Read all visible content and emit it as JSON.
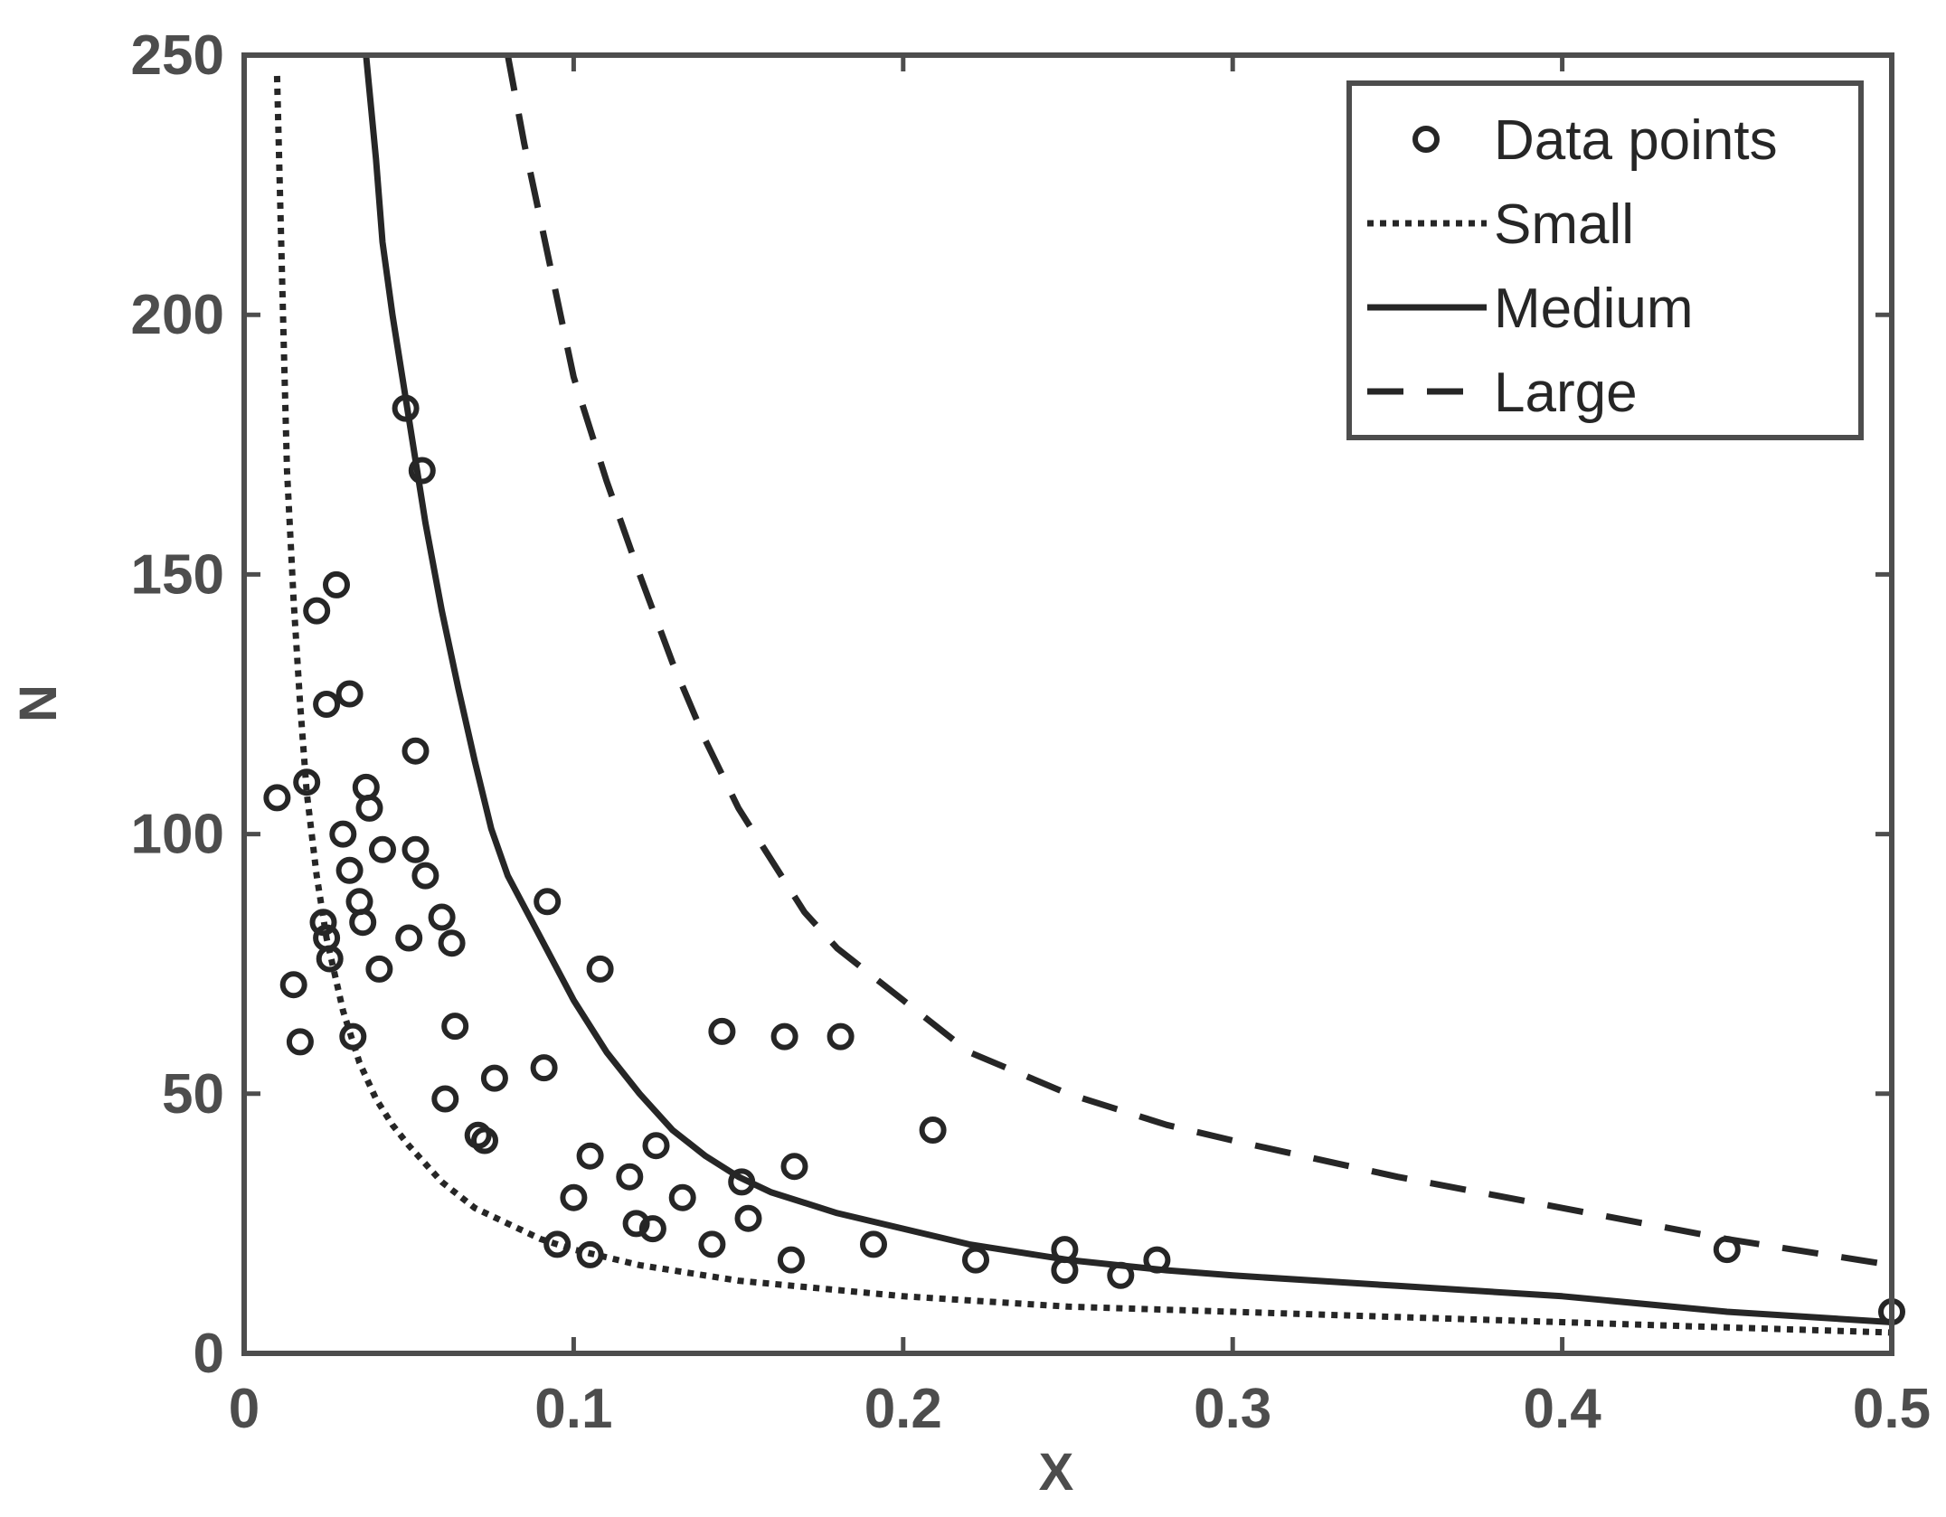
{
  "chart_data": {
    "type": "scatter",
    "xlabel": "X",
    "ylabel": "N",
    "xlim": [
      0,
      0.5
    ],
    "ylim": [
      0,
      250
    ],
    "x_ticks": [
      0,
      0.1,
      0.2,
      0.3,
      0.4,
      0.5
    ],
    "x_tick_labels": [
      "0",
      "0.1",
      "0.2",
      "0.3",
      "0.4",
      "0.5"
    ],
    "y_ticks": [
      0,
      50,
      100,
      150,
      200,
      250
    ],
    "y_tick_labels": [
      "0",
      "50",
      "100",
      "150",
      "200",
      "250"
    ],
    "grid": false,
    "legend_position": "top-right",
    "colors": {
      "axis": "#4d4d4d",
      "series": "#262626",
      "background": "#ffffff"
    },
    "series": [
      {
        "name": "Data points",
        "kind": "markers",
        "marker": "circle",
        "points": [
          [
            0.01,
            107
          ],
          [
            0.015,
            71
          ],
          [
            0.017,
            60
          ],
          [
            0.019,
            110
          ],
          [
            0.022,
            143
          ],
          [
            0.024,
            83
          ],
          [
            0.025,
            125
          ],
          [
            0.025,
            80
          ],
          [
            0.026,
            76
          ],
          [
            0.028,
            148
          ],
          [
            0.03,
            100
          ],
          [
            0.032,
            127
          ],
          [
            0.032,
            93
          ],
          [
            0.033,
            61
          ],
          [
            0.035,
            87
          ],
          [
            0.036,
            83
          ],
          [
            0.037,
            109
          ],
          [
            0.038,
            105
          ],
          [
            0.041,
            74
          ],
          [
            0.042,
            97
          ],
          [
            0.049,
            182
          ],
          [
            0.05,
            80
          ],
          [
            0.052,
            116
          ],
          [
            0.052,
            97
          ],
          [
            0.054,
            170
          ],
          [
            0.055,
            92
          ],
          [
            0.06,
            84
          ],
          [
            0.061,
            49
          ],
          [
            0.063,
            79
          ],
          [
            0.064,
            63
          ],
          [
            0.071,
            42
          ],
          [
            0.073,
            41
          ],
          [
            0.076,
            53
          ],
          [
            0.091,
            55
          ],
          [
            0.092,
            87
          ],
          [
            0.095,
            21
          ],
          [
            0.1,
            30
          ],
          [
            0.105,
            19
          ],
          [
            0.105,
            38
          ],
          [
            0.108,
            74
          ],
          [
            0.117,
            34
          ],
          [
            0.119,
            25
          ],
          [
            0.124,
            24
          ],
          [
            0.125,
            40
          ],
          [
            0.133,
            30
          ],
          [
            0.142,
            21
          ],
          [
            0.145,
            62
          ],
          [
            0.151,
            33
          ],
          [
            0.153,
            26
          ],
          [
            0.164,
            61
          ],
          [
            0.166,
            18
          ],
          [
            0.167,
            36
          ],
          [
            0.181,
            61
          ],
          [
            0.191,
            21
          ],
          [
            0.209,
            43
          ],
          [
            0.222,
            18
          ],
          [
            0.249,
            20
          ],
          [
            0.249,
            16
          ],
          [
            0.266,
            15
          ],
          [
            0.277,
            18
          ],
          [
            0.45,
            20
          ],
          [
            0.5,
            8
          ]
        ]
      },
      {
        "name": "Small",
        "kind": "line",
        "style": "dotted",
        "points": [
          [
            0.01,
            246
          ],
          [
            0.011,
            220
          ],
          [
            0.012,
            195
          ],
          [
            0.013,
            170
          ],
          [
            0.015,
            145
          ],
          [
            0.017,
            125
          ],
          [
            0.019,
            108
          ],
          [
            0.022,
            92
          ],
          [
            0.025,
            80
          ],
          [
            0.03,
            66
          ],
          [
            0.035,
            56
          ],
          [
            0.04,
            49
          ],
          [
            0.045,
            44
          ],
          [
            0.05,
            40
          ],
          [
            0.06,
            33
          ],
          [
            0.07,
            28
          ],
          [
            0.08,
            25
          ],
          [
            0.09,
            22
          ],
          [
            0.1,
            20
          ],
          [
            0.12,
            17
          ],
          [
            0.15,
            14
          ],
          [
            0.2,
            11
          ],
          [
            0.25,
            9
          ],
          [
            0.3,
            8
          ],
          [
            0.35,
            7
          ],
          [
            0.4,
            6
          ],
          [
            0.45,
            5
          ],
          [
            0.5,
            4
          ]
        ]
      },
      {
        "name": "Medium",
        "kind": "line",
        "style": "solid",
        "points": [
          [
            0.037,
            250
          ],
          [
            0.04,
            230
          ],
          [
            0.042,
            214
          ],
          [
            0.045,
            200
          ],
          [
            0.05,
            180
          ],
          [
            0.055,
            160
          ],
          [
            0.06,
            143
          ],
          [
            0.065,
            128
          ],
          [
            0.07,
            114
          ],
          [
            0.075,
            101
          ],
          [
            0.08,
            92
          ],
          [
            0.09,
            80
          ],
          [
            0.1,
            68
          ],
          [
            0.11,
            58
          ],
          [
            0.12,
            50
          ],
          [
            0.13,
            43
          ],
          [
            0.14,
            38
          ],
          [
            0.15,
            34
          ],
          [
            0.16,
            31
          ],
          [
            0.17,
            29
          ],
          [
            0.18,
            27
          ],
          [
            0.2,
            24
          ],
          [
            0.22,
            21
          ],
          [
            0.25,
            18
          ],
          [
            0.28,
            16
          ],
          [
            0.3,
            15
          ],
          [
            0.35,
            13
          ],
          [
            0.4,
            11
          ],
          [
            0.45,
            8
          ],
          [
            0.5,
            6
          ]
        ]
      },
      {
        "name": "Large",
        "kind": "line",
        "style": "dashed",
        "points": [
          [
            0.08,
            250
          ],
          [
            0.085,
            233
          ],
          [
            0.09,
            218
          ],
          [
            0.095,
            203
          ],
          [
            0.1,
            188
          ],
          [
            0.11,
            168
          ],
          [
            0.12,
            150
          ],
          [
            0.13,
            133
          ],
          [
            0.14,
            118
          ],
          [
            0.15,
            105
          ],
          [
            0.16,
            95
          ],
          [
            0.17,
            85
          ],
          [
            0.18,
            78
          ],
          [
            0.2,
            68
          ],
          [
            0.22,
            58
          ],
          [
            0.25,
            50
          ],
          [
            0.28,
            44
          ],
          [
            0.3,
            41
          ],
          [
            0.35,
            34
          ],
          [
            0.4,
            28
          ],
          [
            0.45,
            22
          ],
          [
            0.5,
            17
          ]
        ]
      }
    ]
  }
}
